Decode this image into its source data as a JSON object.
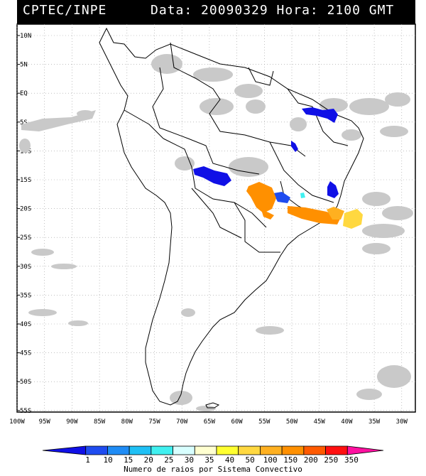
{
  "header": {
    "source": "CPTEC/INPE",
    "datetime": "Data: 20090329 Hora: 2100 GMT"
  },
  "map": {
    "lat_labels": [
      "10N",
      "5N",
      "EQ",
      "5S",
      "10S",
      "15S",
      "20S",
      "25S",
      "30S",
      "35S",
      "40S",
      "45S",
      "50S",
      "55S"
    ],
    "lon_labels": [
      "100W",
      "95W",
      "90W",
      "85W",
      "80W",
      "75W",
      "70W",
      "65W",
      "60W",
      "55W",
      "50W",
      "45W",
      "40W",
      "35W",
      "30W"
    ],
    "grid": true,
    "colors": {
      "land_line": "#000000",
      "cloud": "#c8c8c8",
      "grid_dots": "#9a9a9a"
    }
  },
  "legend": {
    "values": [
      "1",
      "10",
      "15",
      "20",
      "25",
      "30",
      "35",
      "40",
      "50",
      "100",
      "150",
      "200",
      "250",
      "350"
    ],
    "colors": [
      "#1010e6",
      "#1f4cf0",
      "#1f8cf5",
      "#1fc0f5",
      "#40f0f0",
      "#d8ffff",
      "#ffffd0",
      "#ffff30",
      "#ffd840",
      "#ffb020",
      "#ff9000",
      "#ff5a00",
      "#ff1010",
      "#ff10a0"
    ],
    "caption": "Numero de raios por Sistema Convectivo"
  }
}
